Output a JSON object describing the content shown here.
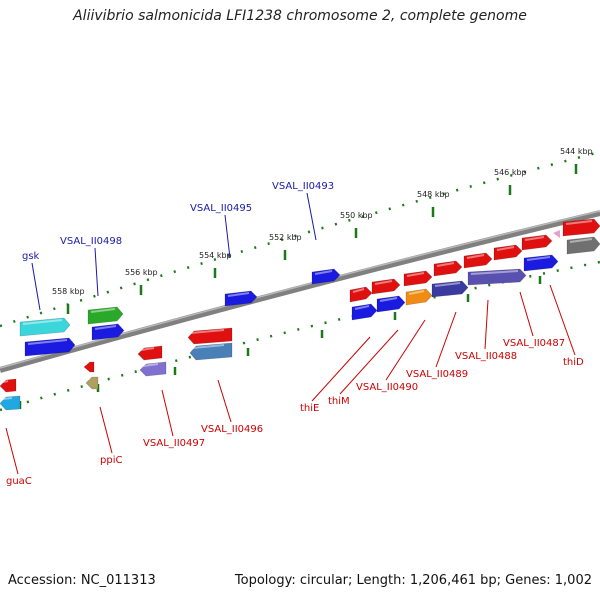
{
  "title": "Aliivibrio salmonicida LFI1238 chromosome 2, complete genome",
  "footer": {
    "accession": "Accession: NC_011313",
    "summary": "Topology: circular; Length: 1,206,461 bp; Genes: 1,002"
  },
  "colors": {
    "backbone": "#808080",
    "tick": "#1a7a1a",
    "forward_label": "#1a1aa6",
    "reverse_label": "#cc0000",
    "pink": "#e8a0c8"
  },
  "scale_labels": [
    "544 kbp",
    "546 kbp",
    "548 kbp",
    "550 kbp",
    "552 kbp",
    "554 kbp",
    "556 kbp",
    "558 kbp"
  ],
  "forward_gene_labels": [
    "gsk",
    "VSAL_II0498",
    "VSAL_II0495",
    "VSAL_II0493"
  ],
  "reverse_gene_labels": [
    "guaC",
    "ppiC",
    "VSAL_II0497",
    "VSAL_II0496",
    "thiE",
    "thiM",
    "VSAL_II0490",
    "VSAL_II0489",
    "VSAL_II0488",
    "VSAL_II0487",
    "thiD"
  ],
  "features": [
    {
      "strand": "fwd",
      "color": "#3ad6dc"
    },
    {
      "strand": "fwd",
      "color": "#1a1ae0"
    },
    {
      "strand": "fwd",
      "color": "#2aa82a"
    },
    {
      "strand": "fwd",
      "color": "#1a1ae0"
    },
    {
      "strand": "fwd",
      "color": "#1a1ae0"
    },
    {
      "strand": "fwd",
      "color": "#1a1ae0"
    },
    {
      "strand": "fwd",
      "color": "#e01010"
    },
    {
      "strand": "fwd",
      "color": "#e01010"
    },
    {
      "strand": "fwd",
      "color": "#e01010"
    },
    {
      "strand": "fwd",
      "color": "#e01010"
    },
    {
      "strand": "fwd",
      "color": "#e01010"
    },
    {
      "strand": "fwd",
      "color": "#e01010"
    },
    {
      "strand": "fwd",
      "color": "#e01010"
    },
    {
      "strand": "fwd",
      "color": "#e01010"
    },
    {
      "strand": "fwd",
      "color": "#1a1ae0"
    },
    {
      "strand": "fwd",
      "color": "#1a1ae0"
    },
    {
      "strand": "fwd",
      "color": "#f08c14"
    },
    {
      "strand": "fwd",
      "color": "#3a3aa0"
    },
    {
      "strand": "fwd",
      "color": "#5a50b0"
    },
    {
      "strand": "fwd",
      "color": "#1a1ae0"
    },
    {
      "strand": "fwd",
      "color": "#707070"
    },
    {
      "strand": "rev",
      "color": "#e01010"
    },
    {
      "strand": "rev",
      "color": "#20a8e0"
    },
    {
      "strand": "rev",
      "color": "#e01010"
    },
    {
      "strand": "rev",
      "color": "#b0a060"
    },
    {
      "strand": "rev",
      "color": "#e01010"
    },
    {
      "strand": "rev",
      "color": "#8070d0"
    },
    {
      "strand": "rev",
      "color": "#e01010"
    },
    {
      "strand": "rev",
      "color": "#4a80b8"
    }
  ]
}
